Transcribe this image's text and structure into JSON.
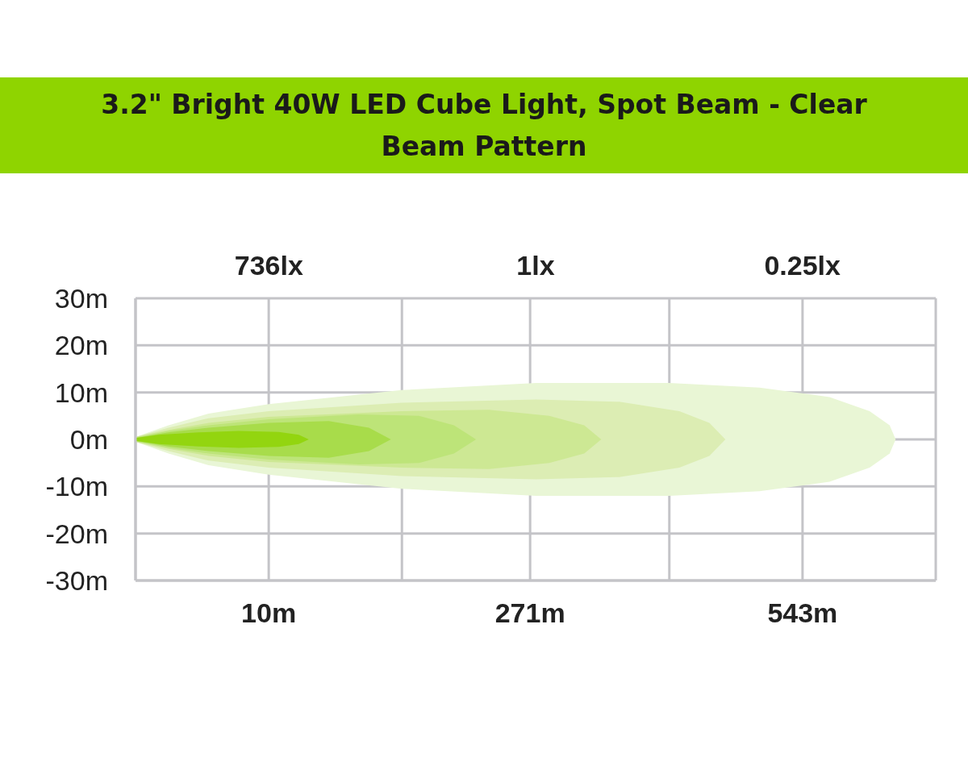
{
  "chart_data": {
    "type": "area",
    "title": "3.2\" Bright 40W LED Cube Light, Spot Beam - Clear Beam Pattern",
    "annotations": [
      "736lx",
      "1lx",
      "0.25lx"
    ],
    "xlim": [
      -123,
      676
    ],
    "xticks": [
      {
        "value": -123,
        "label": null
      },
      {
        "value": 10,
        "label": "10m"
      },
      {
        "value": 143,
        "label": null
      },
      {
        "value": 271,
        "label": "271m"
      },
      {
        "value": 410,
        "label": null
      },
      {
        "value": 543,
        "label": "543m"
      },
      {
        "value": 676,
        "label": null
      }
    ],
    "ylim": [
      -30,
      30
    ],
    "yticks": [
      {
        "value": -30,
        "label": "-30m"
      },
      {
        "value": -20,
        "label": "-20m"
      },
      {
        "value": -10,
        "label": "-10m"
      },
      {
        "value": 0,
        "label": "0m"
      },
      {
        "value": 10,
        "label": "10m"
      },
      {
        "value": 20,
        "label": "20m"
      },
      {
        "value": 30,
        "label": "30m"
      }
    ],
    "grid": true,
    "series": [
      {
        "color": "#e9f6d5",
        "x": [
          -123,
          -90,
          -50,
          10,
          143,
          277,
          410,
          500,
          570,
          610,
          630,
          636
        ],
        "values": [
          0.5,
          3,
          5.5,
          7.5,
          10.5,
          12,
          12,
          11,
          9,
          6,
          3,
          0
        ]
      },
      {
        "color": "#dcedb3",
        "x": [
          -123,
          -90,
          -50,
          10,
          143,
          277,
          360,
          420,
          450,
          466
        ],
        "values": [
          0.5,
          2.5,
          4.5,
          6,
          7.8,
          8.5,
          8,
          6,
          3.5,
          0
        ]
      },
      {
        "color": "#cde893",
        "x": [
          -123,
          -90,
          -50,
          10,
          143,
          230,
          290,
          325,
          342
        ],
        "values": [
          0.5,
          2,
          3.5,
          4.8,
          6,
          6.3,
          5,
          3,
          0
        ]
      },
      {
        "color": "#bde478",
        "x": [
          -123,
          -90,
          -50,
          10,
          100,
          160,
          195,
          217
        ],
        "values": [
          0.4,
          1.8,
          3,
          4.3,
          5.3,
          5,
          3,
          0
        ]
      },
      {
        "color": "#a8dc4a",
        "x": [
          -123,
          -90,
          -50,
          10,
          70,
          110,
          132
        ],
        "values": [
          0.3,
          1.5,
          2.5,
          3.5,
          3.9,
          2.5,
          0
        ]
      },
      {
        "color": "#93d50f",
        "x": [
          -123,
          -100,
          -60,
          -20,
          20,
          40,
          50
        ],
        "values": [
          0.3,
          1,
          1.5,
          1.8,
          1.6,
          1,
          0
        ]
      },
      {
        "color": "#e9f6d6",
        "x": [
          -123,
          -90,
          -50,
          10,
          143,
          277,
          410,
          500,
          570,
          610,
          630,
          636
        ],
        "values": [
          -0.5,
          -3,
          -5.5,
          -7.5,
          -10.5,
          -12,
          -12,
          -11,
          -9,
          -6,
          -3,
          0
        ]
      },
      {
        "color": "#dcedb4",
        "x": [
          -123,
          -90,
          -50,
          10,
          143,
          277,
          360,
          420,
          450,
          466
        ],
        "values": [
          -0.5,
          -2.5,
          -4.5,
          -6,
          -7.8,
          -8.5,
          -8,
          -6,
          -3.5,
          0
        ]
      },
      {
        "color": "#cde894",
        "x": [
          -123,
          -90,
          -50,
          10,
          143,
          230,
          290,
          325,
          342
        ],
        "values": [
          -0.5,
          -2,
          -3.5,
          -4.8,
          -6,
          -6.3,
          -5,
          -3,
          0
        ]
      },
      {
        "color": "#bde479",
        "x": [
          -123,
          -90,
          -50,
          10,
          100,
          160,
          195,
          217
        ],
        "values": [
          -0.4,
          -1.8,
          -3,
          -4.3,
          -5.3,
          -5,
          -3,
          0
        ]
      },
      {
        "color": "#a8dc4b",
        "x": [
          -123,
          -90,
          -50,
          10,
          70,
          110,
          132
        ],
        "values": [
          -0.3,
          -1.5,
          -2.5,
          -3.5,
          -3.9,
          -2.5,
          0
        ]
      },
      {
        "color": "#93d510",
        "x": [
          -123,
          -100,
          -60,
          -20,
          20,
          40,
          50
        ],
        "values": [
          -0.3,
          -1,
          -1.5,
          -1.8,
          -1.6,
          -1,
          0
        ]
      }
    ]
  }
}
